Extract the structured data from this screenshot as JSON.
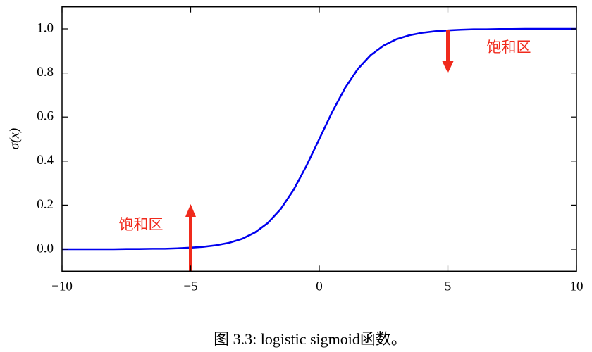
{
  "chart_data": {
    "type": "line",
    "ylabel": "σ(x)",
    "annotations": [
      "饱和区",
      "饱和区"
    ],
    "x": [
      -10,
      -9.5,
      -9,
      -8.5,
      -8,
      -7.5,
      -7,
      -6.5,
      -6,
      -5.5,
      -5,
      -4.5,
      -4,
      -3.5,
      -3,
      -2.5,
      -2,
      -1.5,
      -1,
      -0.5,
      0,
      0.5,
      1,
      1.5,
      2,
      2.5,
      3,
      3.5,
      4,
      4.5,
      5,
      5.5,
      6,
      6.5,
      7,
      7.5,
      8,
      8.5,
      9,
      9.5,
      10
    ],
    "series": [
      {
        "color": "#0000ee",
        "values": [
          0.0,
          0.0,
          0.0,
          0.0,
          0.0,
          0.001,
          0.001,
          0.002,
          0.002,
          0.004,
          0.007,
          0.011,
          0.018,
          0.029,
          0.047,
          0.076,
          0.119,
          0.182,
          0.269,
          0.378,
          0.5,
          0.622,
          0.731,
          0.818,
          0.881,
          0.924,
          0.953,
          0.971,
          0.982,
          0.989,
          0.993,
          0.996,
          0.998,
          0.998,
          0.999,
          0.999,
          1.0,
          1.0,
          1.0,
          1.0,
          1.0
        ]
      }
    ],
    "xlim": [
      -10,
      10
    ],
    "xticks": [
      {
        "value": -10,
        "label": "−10"
      },
      {
        "value": -5,
        "label": "−5"
      },
      0,
      5,
      10
    ],
    "ylim": [
      -0.1,
      1.1
    ],
    "yticks": [
      {
        "value": 0,
        "label": "0.0"
      },
      0.2,
      0.4,
      0.6,
      0.8,
      {
        "value": 1,
        "label": "1.0"
      }
    ],
    "grid": false
  },
  "caption": "图 3.3: logistic sigmoid函数。"
}
